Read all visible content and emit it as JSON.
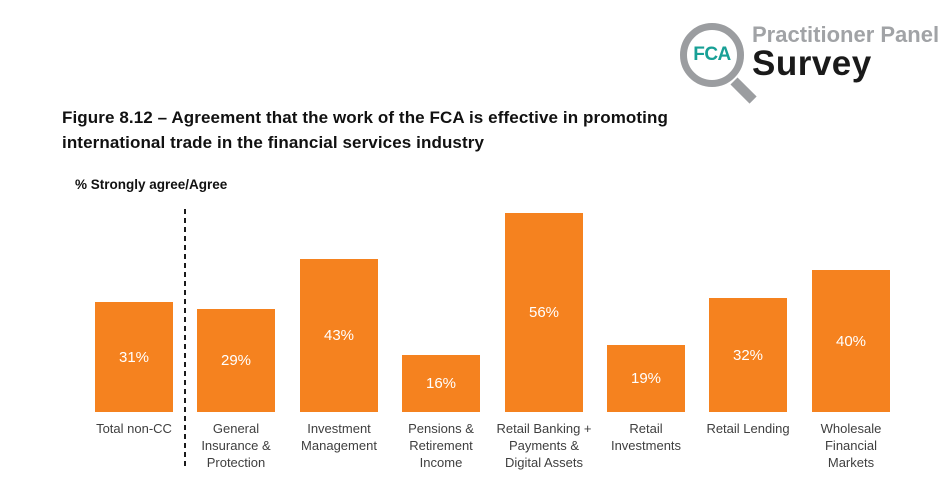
{
  "logo": {
    "fca": "FCA",
    "panel": "Practitioner Panel",
    "survey": "Survey",
    "colors": {
      "ring_gray": "#9B9DA0",
      "fca_teal": "#18A096",
      "panel_gray": "#A1A3A6",
      "survey_black": "#1A1A1A"
    }
  },
  "title": {
    "line1": "Figure 8.12 – Agreement that the work of the FCA is effective in promoting",
    "line2": "international trade in the financial services industry"
  },
  "chart_data": {
    "type": "bar",
    "axis_label": "% Strongly agree/Agree",
    "categories": [
      "Total non-CC",
      "General Insurance & Protection",
      "Investment Management",
      "Pensions & Retirement Income",
      "Retail Banking + Payments & Digital Assets",
      "Retail Investments",
      "Retail Lending",
      "Wholesale Financial Markets"
    ],
    "category_lines": [
      [
        "Total non-CC"
      ],
      [
        "General",
        "Insurance &",
        "Protection"
      ],
      [
        "Investment",
        "Management"
      ],
      [
        "Pensions &",
        "Retirement",
        "Income"
      ],
      [
        "Retail Banking +",
        "Payments &",
        "Digital Assets"
      ],
      [
        "Retail",
        "Investments"
      ],
      [
        "Retail Lending"
      ],
      [
        "Wholesale",
        "Financial",
        "Markets"
      ]
    ],
    "values": [
      31,
      29,
      43,
      16,
      56,
      19,
      32,
      40
    ],
    "value_labels": [
      "31%",
      "29%",
      "43%",
      "16%",
      "56%",
      "19%",
      "32%",
      "40%"
    ],
    "bar_color": "#F5821F",
    "value_label_color": "#FFFFFF",
    "ylim": [
      0,
      60
    ],
    "grid": false,
    "legend": false,
    "separator_after_index": 0,
    "notes": "Dashed vertical line separates Total non-CC from sector bars"
  }
}
